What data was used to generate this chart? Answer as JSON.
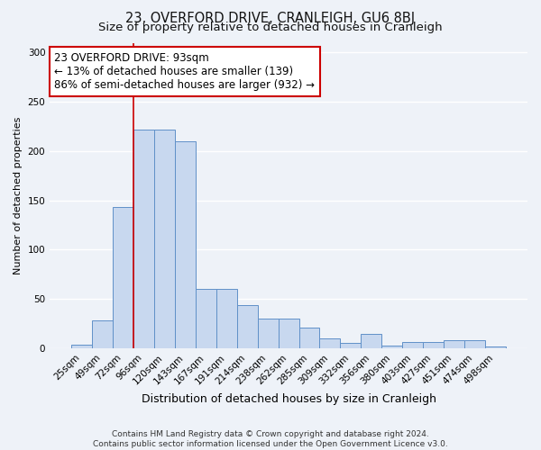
{
  "title": "23, OVERFORD DRIVE, CRANLEIGH, GU6 8BJ",
  "subtitle": "Size of property relative to detached houses in Cranleigh",
  "xlabel": "Distribution of detached houses by size in Cranleigh",
  "ylabel": "Number of detached properties",
  "footer_line1": "Contains HM Land Registry data © Crown copyright and database right 2024.",
  "footer_line2": "Contains public sector information licensed under the Open Government Licence v3.0.",
  "categories": [
    "25sqm",
    "49sqm",
    "72sqm",
    "96sqm",
    "120sqm",
    "143sqm",
    "167sqm",
    "191sqm",
    "214sqm",
    "238sqm",
    "262sqm",
    "285sqm",
    "309sqm",
    "332sqm",
    "356sqm",
    "380sqm",
    "403sqm",
    "427sqm",
    "451sqm",
    "474sqm",
    "498sqm"
  ],
  "values": [
    4,
    28,
    143,
    222,
    222,
    210,
    60,
    60,
    44,
    30,
    30,
    21,
    10,
    5,
    15,
    3,
    6,
    6,
    8,
    8,
    2
  ],
  "bar_color": "#c8d8ef",
  "bar_edge_color": "#6090c8",
  "vline_x": 2.5,
  "vline_color": "#cc0000",
  "annotation_line1": "23 OVERFORD DRIVE: 93sqm",
  "annotation_line2": "← 13% of detached houses are smaller (139)",
  "annotation_line3": "86% of semi-detached houses are larger (932) →",
  "annotation_box_color": "#ffffff",
  "annotation_border_color": "#cc0000",
  "ylim": [
    0,
    310
  ],
  "yticks": [
    0,
    50,
    100,
    150,
    200,
    250,
    300
  ],
  "background_color": "#eef2f8",
  "grid_color": "#ffffff",
  "title_fontsize": 10.5,
  "subtitle_fontsize": 9.5,
  "xlabel_fontsize": 9,
  "ylabel_fontsize": 8,
  "tick_fontsize": 7.5,
  "annotation_fontsize": 8.5,
  "footer_fontsize": 6.5
}
